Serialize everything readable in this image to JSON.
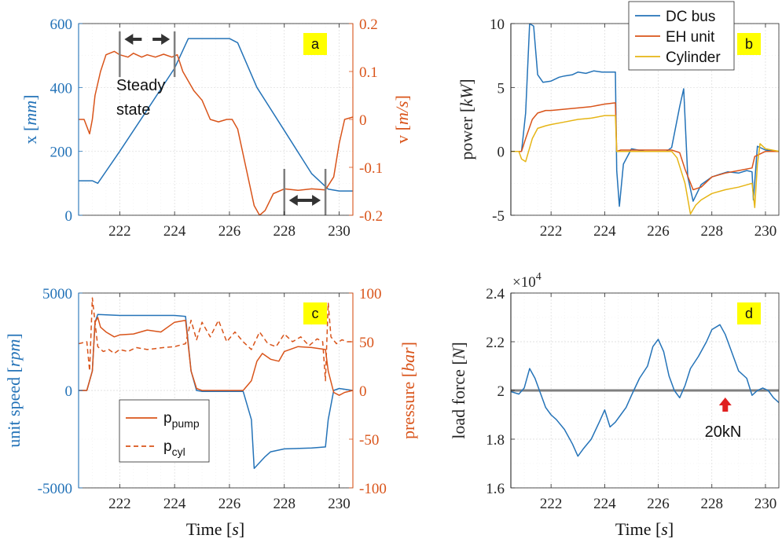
{
  "colors": {
    "blue": "#2473b8",
    "orange": "#d9541a",
    "yellow": "#e6b515",
    "gray": "#7f7f7f",
    "tag_bg": "#ffff00",
    "arrow_red": "#e02020",
    "axis_dark": "#262626"
  },
  "chart_data": [
    {
      "id": "a",
      "type": "line",
      "panel_tag": "a",
      "xlim": [
        220.5,
        230.5
      ],
      "xticks": [
        222,
        224,
        226,
        228,
        230
      ],
      "xtick_labels": [
        "222",
        "224",
        "226",
        "228",
        "230"
      ],
      "left_axis": {
        "label_main": "x ",
        "label_unit": "mm",
        "ylim": [
          0,
          600
        ],
        "ticks": [
          0,
          200,
          400,
          600
        ],
        "tick_labels": [
          "0",
          "200",
          "400",
          "600"
        ],
        "color": "#2473b8"
      },
      "right_axis": {
        "label_main": "v ",
        "label_unit": "m/s",
        "ylim": [
          -0.2,
          0.2
        ],
        "ticks": [
          -0.2,
          -0.1,
          0,
          0.1,
          0.2
        ],
        "tick_labels": [
          "-0.2",
          "-0.1",
          "0",
          "0.1",
          "0.2"
        ],
        "color": "#d9541a"
      },
      "series": [
        {
          "name": "x",
          "axis": "left",
          "color": "#2473b8",
          "x": [
            220.5,
            221.0,
            221.2,
            222.0,
            223.0,
            224.0,
            224.5,
            225.0,
            225.5,
            226.0,
            226.3,
            227.0,
            228.0,
            229.0,
            229.6,
            230.0,
            230.5
          ],
          "y": [
            108,
            108,
            100,
            200,
            330,
            460,
            553,
            553,
            553,
            553,
            540,
            400,
            265,
            130,
            82,
            76,
            76
          ]
        },
        {
          "name": "v",
          "axis": "right",
          "color": "#d9541a",
          "x": [
            220.5,
            220.7,
            220.9,
            221.0,
            221.1,
            221.3,
            221.5,
            221.8,
            222.0,
            222.3,
            222.5,
            222.8,
            223.0,
            223.3,
            223.6,
            223.9,
            224.1,
            224.3,
            224.7,
            225.0,
            225.3,
            225.6,
            225.9,
            226.1,
            226.3,
            226.6,
            226.9,
            227.1,
            227.3,
            227.6,
            228.0,
            228.5,
            229.0,
            229.5,
            229.8,
            230.0,
            230.2,
            230.5
          ],
          "y": [
            0.0,
            0.0,
            -0.03,
            0.0,
            0.05,
            0.1,
            0.135,
            0.142,
            0.135,
            0.13,
            0.138,
            0.13,
            0.135,
            0.13,
            0.136,
            0.13,
            0.135,
            0.1,
            0.06,
            0.04,
            0.0,
            -0.005,
            0.0,
            0.0,
            -0.02,
            -0.1,
            -0.18,
            -0.2,
            -0.19,
            -0.155,
            -0.145,
            -0.148,
            -0.145,
            -0.147,
            -0.12,
            -0.05,
            0.0,
            0.005
          ]
        }
      ],
      "annotations": {
        "steady_label_1": "Steady",
        "steady_label_2": "state",
        "marker_times": [
          222.0,
          224.0,
          228.0,
          229.5
        ]
      }
    },
    {
      "id": "b",
      "type": "line",
      "panel_tag": "b",
      "xlim": [
        220.5,
        230.5
      ],
      "xticks": [
        222,
        224,
        226,
        228,
        230
      ],
      "xtick_labels": [
        "222",
        "224",
        "226",
        "228",
        "230"
      ],
      "left_axis": {
        "label_main": "power ",
        "label_unit": "kW",
        "ylim": [
          -5,
          10
        ],
        "ticks": [
          -5,
          0,
          5,
          10
        ],
        "tick_labels": [
          "-5",
          "0",
          "5",
          "10"
        ],
        "color": "#262626"
      },
      "legend": [
        "DC bus",
        "EH unit",
        "Cylinder"
      ],
      "series": [
        {
          "name": "DC bus",
          "color": "#2473b8",
          "x": [
            220.5,
            220.9,
            221.05,
            221.2,
            221.35,
            221.5,
            221.7,
            222.0,
            222.3,
            222.5,
            222.8,
            223.0,
            223.3,
            223.6,
            223.9,
            224.2,
            224.4,
            224.45,
            224.55,
            224.7,
            225.0,
            225.5,
            226.0,
            226.3,
            226.5,
            226.8,
            226.95,
            227.1,
            227.3,
            227.6,
            228.0,
            228.3,
            228.6,
            229.0,
            229.3,
            229.5,
            229.55,
            229.7,
            230.0,
            230.5
          ],
          "y": [
            0,
            0,
            3,
            10,
            9.8,
            6,
            5.4,
            5.5,
            5.8,
            5.9,
            6.0,
            6.2,
            6.1,
            6.3,
            6.2,
            6.2,
            6.2,
            -1.5,
            -4.3,
            -1.0,
            0.2,
            0,
            0,
            0,
            0.3,
            3.5,
            4.9,
            -2.0,
            -3.9,
            -2.6,
            -2.0,
            -1.8,
            -1.6,
            -1.7,
            -1.5,
            -1.6,
            -3.8,
            0.4,
            0.1,
            0
          ]
        },
        {
          "name": "EH unit",
          "color": "#d9541a",
          "x": [
            220.5,
            220.9,
            221.05,
            221.3,
            221.5,
            221.8,
            222.0,
            222.5,
            223.0,
            223.5,
            224.0,
            224.4,
            224.45,
            224.6,
            225.0,
            225.5,
            226.0,
            226.5,
            226.8,
            227.0,
            227.3,
            227.6,
            228.0,
            228.5,
            229.0,
            229.5,
            229.6,
            230.0,
            230.5
          ],
          "y": [
            0,
            0,
            1.0,
            2.5,
            3.0,
            3.2,
            3.2,
            3.3,
            3.4,
            3.5,
            3.7,
            3.8,
            0.0,
            0.1,
            0.1,
            0.1,
            0.1,
            0.1,
            -0.1,
            -1.4,
            -3.0,
            -2.8,
            -2.0,
            -1.7,
            -1.5,
            -1.3,
            -0.4,
            0.0,
            0
          ]
        },
        {
          "name": "Cylinder",
          "color": "#e6b515",
          "x": [
            220.5,
            220.8,
            220.9,
            221.05,
            221.3,
            221.5,
            221.8,
            222.0,
            222.5,
            223.0,
            223.5,
            224.0,
            224.4,
            224.45,
            224.6,
            225.0,
            225.5,
            226.0,
            226.5,
            226.7,
            227.0,
            227.2,
            227.4,
            227.6,
            228.0,
            228.5,
            229.0,
            229.5,
            229.6,
            229.7,
            229.8,
            230.0,
            230.5
          ],
          "y": [
            0,
            0,
            -0.6,
            -0.8,
            1.0,
            1.8,
            2.0,
            2.1,
            2.3,
            2.5,
            2.6,
            2.8,
            2.8,
            0.0,
            0.0,
            0.0,
            0.0,
            0.0,
            0.0,
            -0.5,
            -2.5,
            -4.9,
            -4.2,
            -3.8,
            -3.3,
            -3.0,
            -2.8,
            -2.5,
            -4.4,
            -1.0,
            0.6,
            0.2,
            0
          ]
        }
      ]
    },
    {
      "id": "c",
      "type": "line",
      "panel_tag": "c",
      "xlim": [
        220.5,
        230.5
      ],
      "xticks": [
        222,
        224,
        226,
        228,
        230
      ],
      "xtick_labels": [
        "222",
        "224",
        "226",
        "228",
        "230"
      ],
      "xlabel_main": "Time ",
      "xlabel_unit": "s",
      "left_axis": {
        "label_main": "unit speed ",
        "label_unit": "rpm",
        "ylim": [
          -5000,
          5000
        ],
        "ticks": [
          -5000,
          0,
          5000
        ],
        "tick_labels": [
          "-5000",
          "0",
          "5000"
        ],
        "color": "#2473b8"
      },
      "right_axis": {
        "label_main": "pressure ",
        "label_unit": "bar",
        "ylim": [
          -100,
          100
        ],
        "ticks": [
          -100,
          -50,
          0,
          50,
          100
        ],
        "tick_labels": [
          "-100",
          "-50",
          "0",
          "50",
          "100"
        ],
        "color": "#d9541a"
      },
      "legend": [
        {
          "base": "p",
          "sub": "pump",
          "style": "solid"
        },
        {
          "base": "p",
          "sub": "cyl",
          "style": "dashed"
        }
      ],
      "series": [
        {
          "name": "unit speed",
          "axis": "left",
          "color": "#2473b8",
          "x": [
            220.5,
            220.8,
            221.0,
            221.1,
            221.2,
            222.0,
            223.0,
            224.0,
            224.4,
            224.6,
            224.8,
            225.0,
            225.5,
            226.0,
            226.5,
            226.8,
            226.9,
            227.3,
            227.5,
            228.0,
            229.0,
            229.5,
            229.6,
            229.8,
            230.0,
            230.5
          ],
          "y": [
            0,
            0,
            1000,
            3500,
            3900,
            3850,
            3850,
            3850,
            3800,
            1000,
            0,
            -50,
            -50,
            -50,
            -50,
            -1500,
            -4000,
            -3400,
            -3150,
            -3000,
            -2950,
            -2900,
            -1500,
            0,
            100,
            0
          ]
        },
        {
          "name": "p_pump",
          "axis": "right",
          "color": "#d9541a",
          "style": "solid",
          "x": [
            220.5,
            220.8,
            221.0,
            221.1,
            221.2,
            221.3,
            221.5,
            221.8,
            222.0,
            222.5,
            223.0,
            223.5,
            224.0,
            224.4,
            224.6,
            224.8,
            225.0,
            225.5,
            226.0,
            226.5,
            226.8,
            227.0,
            227.2,
            227.5,
            227.8,
            228.0,
            228.5,
            229.0,
            229.5,
            229.6,
            229.8,
            230.0,
            230.2,
            230.5
          ],
          "y": [
            0,
            0,
            20,
            70,
            75,
            65,
            60,
            55,
            57,
            58,
            62,
            60,
            70,
            72,
            20,
            2,
            0,
            0,
            0,
            0,
            10,
            30,
            38,
            32,
            30,
            40,
            45,
            44,
            42,
            20,
            -2,
            -5,
            -2,
            0
          ]
        },
        {
          "name": "p_cyl",
          "axis": "right",
          "color": "#d9541a",
          "style": "dashed",
          "x": [
            220.5,
            220.8,
            220.9,
            221.0,
            221.1,
            221.2,
            221.4,
            221.6,
            221.8,
            222.0,
            222.3,
            222.6,
            223.0,
            223.3,
            223.6,
            224.0,
            224.4,
            224.6,
            224.8,
            225.0,
            225.3,
            225.6,
            225.9,
            226.2,
            226.5,
            226.8,
            227.1,
            227.4,
            227.7,
            228.0,
            228.3,
            228.6,
            228.9,
            229.2,
            229.4,
            229.5,
            229.6,
            229.7,
            229.9,
            230.1,
            230.3,
            230.5
          ],
          "y": [
            48,
            50,
            20,
            95,
            70,
            45,
            40,
            42,
            38,
            42,
            40,
            44,
            42,
            43,
            44,
            45,
            48,
            72,
            52,
            70,
            55,
            72,
            50,
            60,
            50,
            42,
            60,
            48,
            45,
            58,
            50,
            55,
            46,
            53,
            50,
            10,
            90,
            55,
            48,
            52,
            50,
            50
          ]
        }
      ]
    },
    {
      "id": "d",
      "type": "line",
      "panel_tag": "d",
      "xlim": [
        220.5,
        230.5
      ],
      "xticks": [
        222,
        224,
        226,
        228,
        230
      ],
      "xtick_labels": [
        "222",
        "224",
        "226",
        "228",
        "230"
      ],
      "xlabel_main": "Time ",
      "xlabel_unit": "s",
      "exponent_label": "×10",
      "exponent_power": "4",
      "left_axis": {
        "label_main": "load force ",
        "label_unit": "N",
        "ylim": [
          1.6,
          2.4
        ],
        "ticks": [
          1.6,
          1.8,
          2.0,
          2.2,
          2.4
        ],
        "tick_labels": [
          "1.6",
          "1.8",
          "2",
          "2.2",
          "2.4"
        ],
        "color": "#262626"
      },
      "reference_line": {
        "value": 2.0,
        "label": "20kN",
        "arrow_x": 228.5,
        "color": "#7f7f7f"
      },
      "series": [
        {
          "name": "load force",
          "color": "#2473b8",
          "x": [
            220.5,
            220.8,
            221.0,
            221.2,
            221.4,
            221.6,
            221.8,
            222.0,
            222.2,
            222.5,
            222.8,
            223.0,
            223.2,
            223.5,
            223.8,
            224.0,
            224.2,
            224.4,
            224.6,
            224.8,
            225.0,
            225.3,
            225.6,
            225.8,
            226.0,
            226.2,
            226.4,
            226.6,
            226.8,
            227.0,
            227.2,
            227.5,
            227.8,
            228.0,
            228.3,
            228.5,
            228.7,
            229.0,
            229.3,
            229.5,
            229.7,
            229.9,
            230.1,
            230.3,
            230.5
          ],
          "y": [
            1.995,
            1.985,
            2.01,
            2.09,
            2.05,
            1.99,
            1.93,
            1.9,
            1.88,
            1.84,
            1.78,
            1.73,
            1.76,
            1.8,
            1.87,
            1.92,
            1.85,
            1.87,
            1.9,
            1.93,
            1.98,
            2.05,
            2.1,
            2.18,
            2.21,
            2.16,
            2.06,
            2.0,
            1.97,
            2.02,
            2.09,
            2.14,
            2.2,
            2.25,
            2.27,
            2.23,
            2.17,
            2.08,
            2.05,
            1.98,
            2.0,
            2.01,
            2.0,
            1.97,
            1.95
          ]
        }
      ]
    }
  ]
}
